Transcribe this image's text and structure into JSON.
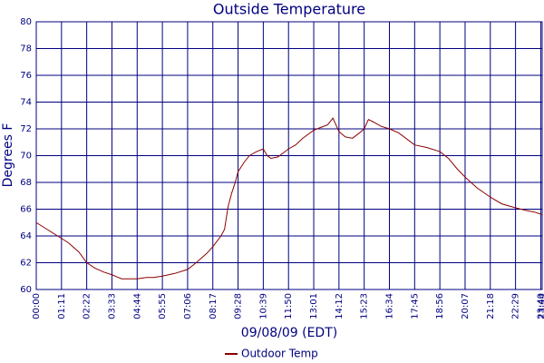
{
  "chart_data": {
    "type": "line",
    "title": "Outside Temperature",
    "x_label": "09/08/09 (EDT)",
    "y_label": "Degrees F",
    "grid": true,
    "legend": "bottom",
    "x": [
      "00:00",
      "00:30",
      "01:00",
      "01:30",
      "02:00",
      "02:22",
      "02:45",
      "03:10",
      "03:33",
      "04:00",
      "04:20",
      "04:44",
      "05:10",
      "05:30",
      "05:55",
      "06:30",
      "07:06",
      "07:30",
      "08:00",
      "08:17",
      "08:40",
      "08:50",
      "09:00",
      "09:10",
      "09:20",
      "09:28",
      "09:45",
      "10:00",
      "10:20",
      "10:39",
      "10:50",
      "11:00",
      "11:20",
      "11:50",
      "12:10",
      "12:30",
      "13:01",
      "13:20",
      "13:40",
      "13:55",
      "14:12",
      "14:30",
      "14:50",
      "15:10",
      "15:23",
      "15:35",
      "15:50",
      "16:10",
      "16:34",
      "17:00",
      "17:20",
      "17:45",
      "18:20",
      "18:56",
      "19:20",
      "19:45",
      "20:07",
      "20:40",
      "21:18",
      "21:50",
      "22:29",
      "23:00",
      "23:20",
      "23:44"
    ],
    "series": [
      {
        "name": "Outdoor Temp",
        "color": "#8b0000",
        "values": [
          65.0,
          64.5,
          64.0,
          63.5,
          62.8,
          62.0,
          61.6,
          61.3,
          61.1,
          60.8,
          60.8,
          60.8,
          60.9,
          60.9,
          61.0,
          61.2,
          61.5,
          62.0,
          62.7,
          63.2,
          64.0,
          64.5,
          66.2,
          67.2,
          68.0,
          68.8,
          69.5,
          70.0,
          70.3,
          70.5,
          70.0,
          69.8,
          69.9,
          70.5,
          70.8,
          71.3,
          71.9,
          72.1,
          72.3,
          72.8,
          71.8,
          71.4,
          71.3,
          71.7,
          72.0,
          72.7,
          72.5,
          72.2,
          72.0,
          71.7,
          71.3,
          70.8,
          70.6,
          70.3,
          69.8,
          69.0,
          68.4,
          67.6,
          66.9,
          66.4,
          66.1,
          65.9,
          65.8,
          65.6
        ]
      }
    ],
    "xlim": [
      "00:00",
      "23:44"
    ],
    "xticks": [
      "00:00",
      "01:11",
      "02:22",
      "03:33",
      "04:44",
      "05:55",
      "07:06",
      "08:17",
      "09:28",
      "10:39",
      "11:50",
      "13:01",
      "14:12",
      "15:23",
      "16:34",
      "17:45",
      "18:56",
      "20:07",
      "21:18",
      "22:29",
      "23:40",
      "23:44"
    ],
    "ylim": [
      60,
      80
    ],
    "yticks": [
      60,
      62,
      64,
      66,
      68,
      70,
      72,
      74,
      76,
      78,
      80
    ]
  }
}
